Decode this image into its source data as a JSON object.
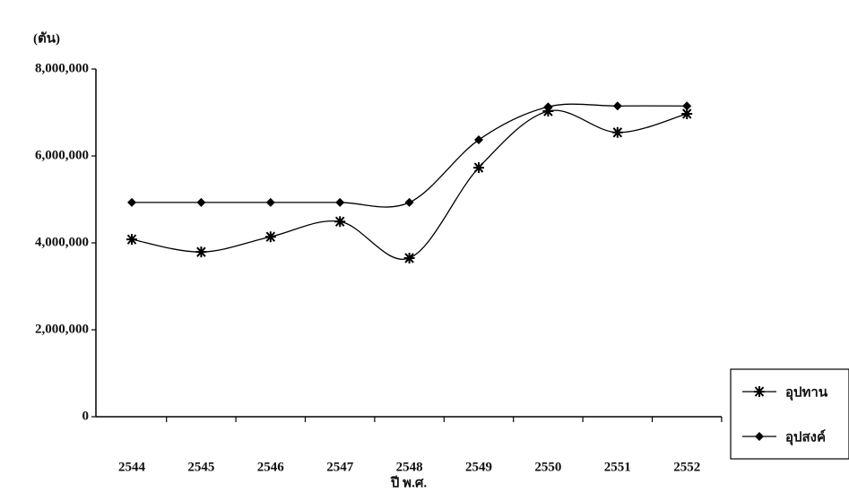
{
  "chart_data": {
    "type": "line",
    "y_label": "(ตัน)",
    "x_label": "ปี พ.ศ.",
    "categories": [
      "2544",
      "2545",
      "2546",
      "2547",
      "2548",
      "2549",
      "2550",
      "2551",
      "2552"
    ],
    "series": [
      {
        "name": "อุปทาน",
        "color": "#000000",
        "marker": "asterisk",
        "values": [
          4080000,
          3790000,
          4140000,
          4490000,
          3650000,
          5730000,
          7030000,
          6540000,
          6970000
        ]
      },
      {
        "name": "อุปสงค์",
        "color": "#000000",
        "marker": "diamond",
        "values": [
          4930000,
          4930000,
          4930000,
          4930000,
          4930000,
          6370000,
          7130000,
          7150000,
          7150000
        ]
      }
    ],
    "ylim": [
      0,
      8000000
    ],
    "yticks": [
      0,
      {
        "value": 2000000,
        "label": "2,000,000"
      },
      {
        "value": 4000000,
        "label": "4,000,000"
      },
      {
        "value": 6000000,
        "label": "6,000,000"
      },
      {
        "value": 8000000,
        "label": "8,000,000"
      }
    ],
    "grid": false,
    "smooth": true,
    "legend": "right"
  }
}
